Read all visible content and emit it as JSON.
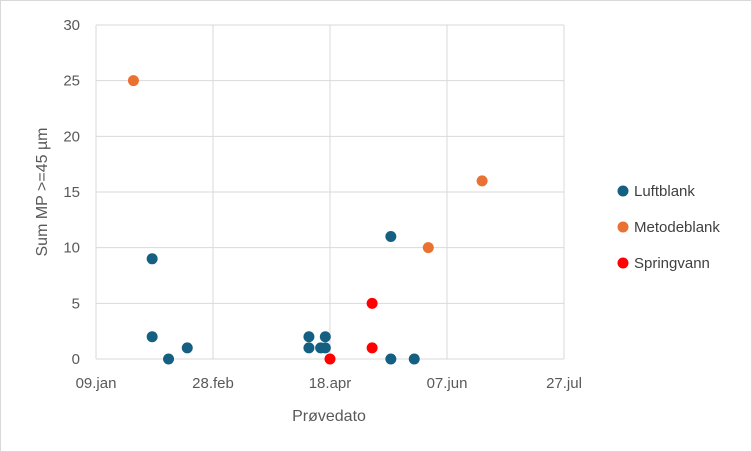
{
  "chart_data": {
    "type": "scatter",
    "title": "",
    "xlabel": "Prøvedato",
    "ylabel": "Sum MP >=45 µm",
    "x_axis_type": "date",
    "xlim": [
      "2024-01-09",
      "2024-07-27"
    ],
    "ylim": [
      0,
      30
    ],
    "x_ticks": [
      {
        "date": "2024-01-09",
        "label": "09.jan"
      },
      {
        "date": "2024-02-28",
        "label": "28.feb"
      },
      {
        "date": "2024-04-18",
        "label": "18.apr"
      },
      {
        "date": "2024-06-07",
        "label": "07.jun"
      },
      {
        "date": "2024-07-27",
        "label": "27.jul"
      }
    ],
    "y_ticks": [
      0,
      5,
      10,
      15,
      20,
      25,
      30
    ],
    "grid": true,
    "legend_position": "right",
    "series": [
      {
        "name": "Luftblank",
        "color": "#156082",
        "points": [
          {
            "x": "2024-02-02",
            "y": 9
          },
          {
            "x": "2024-02-02",
            "y": 2
          },
          {
            "x": "2024-02-09",
            "y": 0
          },
          {
            "x": "2024-02-17",
            "y": 1
          },
          {
            "x": "2024-04-09",
            "y": 2
          },
          {
            "x": "2024-04-09",
            "y": 1
          },
          {
            "x": "2024-04-14",
            "y": 1
          },
          {
            "x": "2024-04-16",
            "y": 2
          },
          {
            "x": "2024-04-16",
            "y": 1
          },
          {
            "x": "2024-05-14",
            "y": 11
          },
          {
            "x": "2024-05-14",
            "y": 0
          },
          {
            "x": "2024-05-24",
            "y": 0
          }
        ]
      },
      {
        "name": "Metodeblank",
        "color": "#E97132",
        "points": [
          {
            "x": "2024-01-25",
            "y": 25
          },
          {
            "x": "2024-05-30",
            "y": 10
          },
          {
            "x": "2024-06-22",
            "y": 16
          }
        ]
      },
      {
        "name": "Springvann",
        "color": "#FF0000",
        "points": [
          {
            "x": "2024-04-18",
            "y": 0
          },
          {
            "x": "2024-05-06",
            "y": 5
          },
          {
            "x": "2024-05-06",
            "y": 1
          }
        ]
      }
    ]
  }
}
